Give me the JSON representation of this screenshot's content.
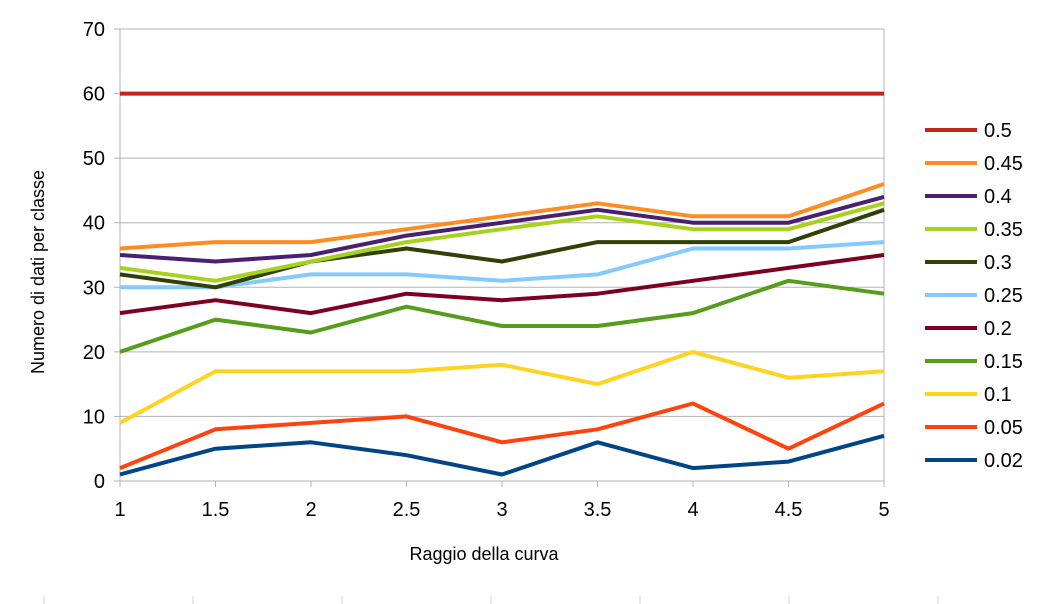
{
  "chart_data": {
    "type": "line",
    "title": "",
    "xlabel": "Raggio della curva",
    "ylabel": "Numero di dati per classe",
    "x": [
      "1",
      "1.5",
      "2",
      "2.5",
      "3",
      "3.5",
      "4",
      "4.5",
      "5"
    ],
    "xlim": [
      1,
      5
    ],
    "ylim": [
      0,
      70
    ],
    "yticks": [
      "0",
      "10",
      "20",
      "30",
      "40",
      "50",
      "60",
      "70"
    ],
    "grid": "horizontal",
    "legend_position": "right",
    "series": [
      {
        "name": "0.5",
        "color": "#c9211e",
        "values": [
          60,
          60,
          60,
          60,
          60,
          60,
          60,
          60,
          60
        ]
      },
      {
        "name": "0.45",
        "color": "#ff8c22",
        "values": [
          36,
          37,
          37,
          39,
          41,
          43,
          41,
          41,
          46
        ]
      },
      {
        "name": "0.4",
        "color": "#4b1f6f",
        "values": [
          35,
          34,
          35,
          38,
          40,
          42,
          40,
          40,
          44
        ]
      },
      {
        "name": "0.35",
        "color": "#a6d21e",
        "values": [
          33,
          31,
          34,
          37,
          39,
          41,
          39,
          39,
          43
        ]
      },
      {
        "name": "0.3",
        "color": "#314004",
        "values": [
          32,
          30,
          34,
          36,
          34,
          37,
          37,
          37,
          42
        ]
      },
      {
        "name": "0.25",
        "color": "#83caff",
        "values": [
          30,
          30,
          32,
          32,
          31,
          32,
          36,
          36,
          37
        ]
      },
      {
        "name": "0.2",
        "color": "#7e0021",
        "values": [
          26,
          28,
          26,
          29,
          28,
          29,
          31,
          33,
          35
        ]
      },
      {
        "name": "0.15",
        "color": "#579d1c",
        "values": [
          20,
          25,
          23,
          27,
          24,
          24,
          26,
          31,
          29
        ]
      },
      {
        "name": "0.1",
        "color": "#ffd320",
        "values": [
          9,
          17,
          17,
          17,
          18,
          15,
          20,
          16,
          17
        ]
      },
      {
        "name": "0.05",
        "color": "#ff420e",
        "values": [
          2,
          8,
          9,
          10,
          6,
          8,
          12,
          5,
          12
        ]
      },
      {
        "name": "0.02",
        "color": "#004586",
        "values": [
          1,
          5,
          6,
          4,
          1,
          6,
          2,
          3,
          7
        ]
      }
    ]
  }
}
